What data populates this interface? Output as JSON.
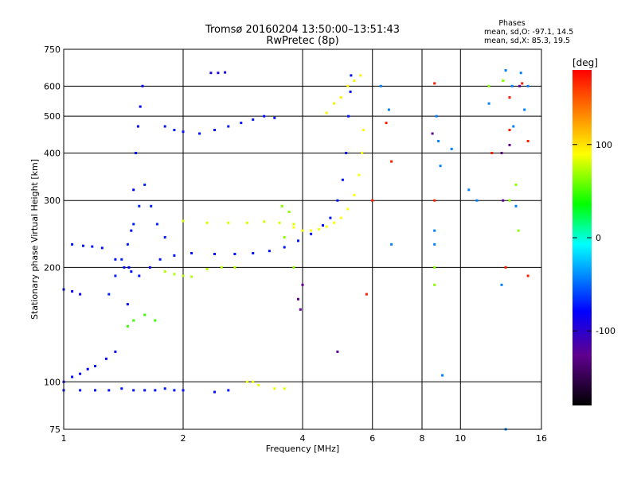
{
  "chart_data": {
    "type": "scatter",
    "title": "Tromsø 20160204 13:50:00–13:51:43",
    "subtitle": "RwPretec (8p)",
    "stats": {
      "heading": "Phases",
      "o_line": "mean, sd,O: -97.1, 14.5",
      "x_line": "mean, sd,X:  85.3, 19.5"
    },
    "xlabel": "Frequency [MHz]",
    "ylabel": "Stationary phase Virtual Height [km]",
    "xscale": "log",
    "yscale": "log",
    "xlim": [
      1,
      16
    ],
    "ylim": [
      75,
      750
    ],
    "xticks": [
      1,
      2,
      4,
      6,
      8,
      10,
      16
    ],
    "xtick_labels": [
      "1",
      "2",
      "4",
      "6",
      "8",
      "10",
      "16"
    ],
    "yticks": [
      75,
      100,
      200,
      300,
      400,
      500,
      600,
      750
    ],
    "ytick_labels": [
      "75",
      "100",
      "200",
      "300",
      "400",
      "500",
      "600",
      "750"
    ],
    "grid": true,
    "colorbar": {
      "label": "[deg]",
      "range": [
        -180,
        180
      ],
      "ticks": [
        100,
        0,
        -100
      ],
      "tick_labels": [
        "100",
        "0",
        "-100"
      ]
    },
    "traces": [
      {
        "phase": -95,
        "points": [
          [
            1.05,
            230
          ],
          [
            1.12,
            228
          ],
          [
            1.18,
            227
          ],
          [
            1.25,
            225
          ],
          [
            1.35,
            210
          ],
          [
            1.42,
            200
          ],
          [
            1.48,
            195
          ],
          [
            1.55,
            190
          ],
          [
            1.65,
            200
          ],
          [
            1.75,
            210
          ],
          [
            1.9,
            215
          ],
          [
            2.1,
            218
          ],
          [
            2.4,
            217
          ],
          [
            2.7,
            217
          ],
          [
            3.0,
            218
          ],
          [
            3.3,
            221
          ],
          [
            3.6,
            226
          ],
          [
            3.9,
            235
          ],
          [
            4.2,
            245
          ],
          [
            4.5,
            258
          ],
          [
            4.7,
            270
          ],
          [
            4.9,
            300
          ],
          [
            5.05,
            340
          ],
          [
            5.15,
            400
          ],
          [
            5.22,
            500
          ],
          [
            5.28,
            580
          ],
          [
            5.3,
            640
          ]
        ]
      },
      {
        "phase": -100,
        "points": [
          [
            1.45,
            160
          ],
          [
            1.46,
            200
          ],
          [
            1.48,
            250
          ],
          [
            1.5,
            320
          ],
          [
            1.52,
            400
          ],
          [
            1.54,
            470
          ],
          [
            1.56,
            530
          ],
          [
            1.58,
            600
          ]
        ]
      },
      {
        "phase": -90,
        "points": [
          [
            1.3,
            170
          ],
          [
            1.35,
            190
          ],
          [
            1.4,
            210
          ],
          [
            1.45,
            230
          ],
          [
            1.5,
            260
          ],
          [
            1.55,
            290
          ],
          [
            1.6,
            330
          ],
          [
            1.66,
            290
          ],
          [
            1.72,
            260
          ],
          [
            1.8,
            240
          ]
        ]
      },
      {
        "phase": -95,
        "points": [
          [
            1.8,
            470
          ],
          [
            1.9,
            460
          ],
          [
            2.0,
            455
          ],
          [
            2.2,
            450
          ],
          [
            2.4,
            460
          ],
          [
            2.6,
            470
          ],
          [
            2.8,
            480
          ],
          [
            3.0,
            490
          ],
          [
            3.2,
            500
          ],
          [
            3.4,
            495
          ]
        ]
      },
      {
        "phase": -100,
        "points": [
          [
            1.0,
            100
          ],
          [
            1.05,
            103
          ],
          [
            1.1,
            105
          ],
          [
            1.15,
            108
          ],
          [
            1.2,
            110
          ],
          [
            1.28,
            115
          ],
          [
            1.35,
            120
          ]
        ]
      },
      {
        "phase": -95,
        "points": [
          [
            1.0,
            95
          ],
          [
            1.1,
            95
          ],
          [
            1.2,
            95
          ],
          [
            1.3,
            95
          ],
          [
            1.4,
            96
          ],
          [
            1.5,
            95
          ],
          [
            1.6,
            95
          ],
          [
            1.7,
            95
          ],
          [
            1.8,
            96
          ],
          [
            1.9,
            95
          ],
          [
            2.0,
            95
          ],
          [
            2.4,
            94
          ],
          [
            2.6,
            95
          ]
        ]
      },
      {
        "phase": -105,
        "points": [
          [
            1.0,
            175
          ],
          [
            1.05,
            173
          ],
          [
            1.1,
            170
          ]
        ]
      },
      {
        "phase": 90,
        "points": [
          [
            3.8,
            255
          ],
          [
            4.0,
            250
          ],
          [
            4.2,
            250
          ],
          [
            4.4,
            252
          ],
          [
            4.6,
            256
          ],
          [
            4.8,
            262
          ],
          [
            5.0,
            270
          ],
          [
            5.2,
            285
          ],
          [
            5.4,
            310
          ],
          [
            5.55,
            350
          ],
          [
            5.65,
            400
          ],
          [
            5.7,
            460
          ]
        ]
      },
      {
        "phase": 80,
        "points": [
          [
            2.0,
            265
          ],
          [
            2.3,
            262
          ],
          [
            2.6,
            262
          ],
          [
            2.9,
            262
          ],
          [
            3.2,
            264
          ],
          [
            3.5,
            262
          ],
          [
            3.8,
            260
          ]
        ]
      },
      {
        "phase": 70,
        "points": [
          [
            1.8,
            195
          ],
          [
            1.9,
            192
          ],
          [
            2.0,
            190
          ],
          [
            2.1,
            189
          ],
          [
            2.3,
            198
          ],
          [
            2.5,
            200
          ],
          [
            2.7,
            200
          ]
        ]
      },
      {
        "phase": 85,
        "points": [
          [
            2.9,
            100
          ],
          [
            3.0,
            100
          ],
          [
            3.1,
            98
          ],
          [
            3.4,
            96
          ],
          [
            3.6,
            96
          ]
        ]
      },
      {
        "phase": 95,
        "points": [
          [
            4.6,
            510
          ],
          [
            4.8,
            540
          ],
          [
            5.0,
            560
          ],
          [
            5.2,
            600
          ],
          [
            5.4,
            620
          ],
          [
            5.6,
            640
          ]
        ]
      },
      {
        "phase": 40,
        "points": [
          [
            1.45,
            140
          ],
          [
            1.5,
            145
          ],
          [
            1.6,
            150
          ],
          [
            1.7,
            145
          ]
        ]
      },
      {
        "phase": -110,
        "points": [
          [
            2.35,
            650
          ],
          [
            2.45,
            650
          ],
          [
            2.55,
            652
          ]
        ]
      },
      {
        "phase": 170,
        "points": [
          [
            5.8,
            170
          ],
          [
            6.0,
            300
          ],
          [
            6.5,
            480
          ],
          [
            6.7,
            380
          ],
          [
            8.6,
            610
          ],
          [
            8.6,
            300
          ],
          [
            12.0,
            400
          ],
          [
            13.0,
            200
          ],
          [
            13.3,
            560
          ],
          [
            13.3,
            460
          ],
          [
            14.3,
            610
          ],
          [
            14.8,
            430
          ],
          [
            14.8,
            190
          ]
        ]
      },
      {
        "phase": 60,
        "points": [
          [
            3.55,
            290
          ],
          [
            3.6,
            240
          ],
          [
            3.7,
            280
          ],
          [
            3.8,
            200
          ],
          [
            8.6,
            180
          ],
          [
            8.6,
            200
          ],
          [
            11.8,
            600
          ],
          [
            12.8,
            620
          ],
          [
            13.3,
            300
          ],
          [
            13.8,
            330
          ],
          [
            14.0,
            250
          ]
        ]
      },
      {
        "phase": -60,
        "points": [
          [
            6.3,
            600
          ],
          [
            6.6,
            520
          ],
          [
            6.7,
            230
          ],
          [
            8.6,
            230
          ],
          [
            8.6,
            250
          ],
          [
            8.7,
            500
          ],
          [
            8.8,
            430
          ],
          [
            8.9,
            370
          ],
          [
            9.0,
            104
          ],
          [
            9.5,
            410
          ],
          [
            10.5,
            320
          ],
          [
            11.0,
            300
          ],
          [
            11.8,
            540
          ],
          [
            12.7,
            180
          ],
          [
            13.0,
            660
          ],
          [
            13.5,
            600
          ],
          [
            13.6,
            470
          ],
          [
            14.2,
            650
          ],
          [
            14.5,
            520
          ],
          [
            14.8,
            600
          ],
          [
            13.0,
            75
          ],
          [
            13.8,
            290
          ]
        ]
      },
      {
        "phase": -140,
        "points": [
          [
            3.9,
            165
          ],
          [
            3.95,
            155
          ],
          [
            4.0,
            180
          ],
          [
            4.9,
            120
          ],
          [
            8.5,
            450
          ],
          [
            12.7,
            400
          ],
          [
            12.8,
            300
          ],
          [
            13.3,
            420
          ],
          [
            14.1,
            600
          ]
        ]
      }
    ]
  }
}
